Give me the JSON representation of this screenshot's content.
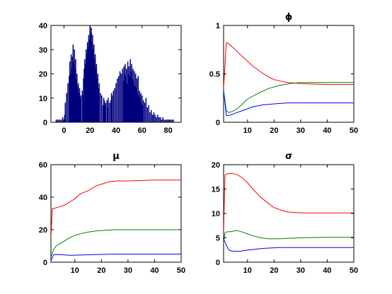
{
  "chart_data": [
    {
      "type": "bar",
      "title": "",
      "xlabel": "",
      "ylabel": "",
      "xlim": [
        -10,
        90
      ],
      "ylim": [
        0,
        40
      ],
      "xticks": [
        0,
        20,
        40,
        60,
        80
      ],
      "yticks": [
        0,
        10,
        20,
        30,
        40
      ],
      "color": "#00007f",
      "bin_width": 0.5,
      "bins": [
        [
          -6,
          1
        ],
        [
          -5,
          1
        ],
        [
          -4,
          1
        ],
        [
          -3,
          1
        ],
        [
          -2,
          1
        ],
        [
          -1,
          2
        ],
        [
          0,
          1
        ],
        [
          0.5,
          3
        ],
        [
          1,
          8
        ],
        [
          2,
          12
        ],
        [
          3,
          16
        ],
        [
          4,
          19
        ],
        [
          4.5,
          25
        ],
        [
          5,
          20
        ],
        [
          5.5,
          28
        ],
        [
          6,
          22
        ],
        [
          6.5,
          27
        ],
        [
          7,
          32
        ],
        [
          7.5,
          25
        ],
        [
          8,
          30
        ],
        [
          8.5,
          22
        ],
        [
          9,
          26
        ],
        [
          9.5,
          18
        ],
        [
          10,
          20
        ],
        [
          10.5,
          15
        ],
        [
          11,
          16
        ],
        [
          11.5,
          12
        ],
        [
          12,
          14
        ],
        [
          12.5,
          10
        ],
        [
          13,
          11
        ],
        [
          14,
          13
        ],
        [
          14.5,
          11
        ],
        [
          15,
          18
        ],
        [
          15.5,
          22
        ],
        [
          16,
          26
        ],
        [
          16.5,
          24
        ],
        [
          17,
          30
        ],
        [
          17.5,
          28
        ],
        [
          18,
          33
        ],
        [
          18.5,
          31
        ],
        [
          19,
          36
        ],
        [
          19.5,
          34
        ],
        [
          20,
          40
        ],
        [
          20.5,
          37
        ],
        [
          21,
          39
        ],
        [
          21.5,
          33
        ],
        [
          22,
          36
        ],
        [
          22.5,
          30
        ],
        [
          23,
          32
        ],
        [
          23.5,
          26
        ],
        [
          24,
          28
        ],
        [
          24.5,
          22
        ],
        [
          25,
          24
        ],
        [
          25.5,
          18
        ],
        [
          26,
          20
        ],
        [
          26.5,
          14
        ],
        [
          27,
          16
        ],
        [
          28,
          12
        ],
        [
          29,
          11
        ],
        [
          30,
          7
        ],
        [
          30.5,
          10
        ],
        [
          31,
          9
        ],
        [
          31.5,
          7
        ],
        [
          32,
          8
        ],
        [
          33,
          9
        ],
        [
          33.5,
          6
        ],
        [
          34,
          10
        ],
        [
          35,
          8
        ],
        [
          36,
          9
        ],
        [
          36.5,
          12
        ],
        [
          37,
          11
        ],
        [
          38,
          13
        ],
        [
          39,
          14
        ],
        [
          40,
          16
        ],
        [
          41,
          18
        ],
        [
          42,
          19
        ],
        [
          43,
          21
        ],
        [
          44,
          20
        ],
        [
          45,
          22
        ],
        [
          45.5,
          17
        ],
        [
          46,
          23
        ],
        [
          46.5,
          20
        ],
        [
          47,
          24
        ],
        [
          47.5,
          19
        ],
        [
          48,
          22
        ],
        [
          48.5,
          16
        ],
        [
          49,
          25
        ],
        [
          49.5,
          20
        ],
        [
          50,
          23
        ],
        [
          50.5,
          19
        ],
        [
          51,
          26
        ],
        [
          51.5,
          21
        ],
        [
          52,
          24
        ],
        [
          52.5,
          18
        ],
        [
          53,
          22
        ],
        [
          53.5,
          17
        ],
        [
          54,
          21
        ],
        [
          54.5,
          15
        ],
        [
          55,
          20
        ],
        [
          55.5,
          14
        ],
        [
          56,
          18
        ],
        [
          56.5,
          12
        ],
        [
          57,
          19
        ],
        [
          57.5,
          11
        ],
        [
          58,
          13
        ],
        [
          58.5,
          10
        ],
        [
          59,
          12
        ],
        [
          59.5,
          8
        ],
        [
          60,
          11
        ],
        [
          60.5,
          7
        ],
        [
          61,
          9
        ],
        [
          62,
          8
        ],
        [
          63,
          10
        ],
        [
          64,
          6
        ],
        [
          65,
          7
        ],
        [
          66,
          4
        ],
        [
          67,
          5
        ],
        [
          68,
          3
        ],
        [
          69,
          4
        ],
        [
          70,
          3
        ],
        [
          71,
          2
        ],
        [
          72,
          3
        ],
        [
          73,
          2
        ],
        [
          74,
          2
        ],
        [
          75,
          1
        ],
        [
          76,
          2
        ],
        [
          77,
          1
        ],
        [
          78,
          1
        ],
        [
          79,
          1
        ],
        [
          80,
          1
        ],
        [
          81,
          1
        ],
        [
          82,
          1
        ],
        [
          83,
          1
        ],
        [
          84,
          1
        ]
      ]
    },
    {
      "type": "line",
      "title": "ϕ",
      "xlabel": "",
      "ylabel": "",
      "xlim": [
        1,
        50
      ],
      "ylim": [
        0,
        1
      ],
      "xticks": [
        10,
        20,
        30,
        40,
        50
      ],
      "yticks": [
        0,
        0.5,
        1
      ],
      "series": [
        {
          "color": "#ff0000",
          "x": [
            1,
            2,
            3,
            5,
            8,
            12,
            16,
            20,
            25,
            30,
            40,
            50
          ],
          "y": [
            0.35,
            0.82,
            0.81,
            0.76,
            0.68,
            0.58,
            0.5,
            0.44,
            0.41,
            0.4,
            0.39,
            0.39
          ]
        },
        {
          "color": "#008000",
          "x": [
            1,
            2,
            3,
            5,
            7,
            10,
            14,
            18,
            22,
            26,
            30,
            40,
            50
          ],
          "y": [
            0.32,
            0.12,
            0.1,
            0.12,
            0.16,
            0.24,
            0.3,
            0.35,
            0.38,
            0.4,
            0.41,
            0.41,
            0.41
          ]
        },
        {
          "color": "#0000ff",
          "x": [
            1,
            2,
            3,
            5,
            8,
            12,
            16,
            20,
            25,
            30,
            40,
            50
          ],
          "y": [
            0.33,
            0.07,
            0.07,
            0.09,
            0.12,
            0.16,
            0.18,
            0.19,
            0.2,
            0.2,
            0.2,
            0.2
          ]
        }
      ]
    },
    {
      "type": "line",
      "title": "μ",
      "xlabel": "",
      "ylabel": "",
      "xlim": [
        1,
        50
      ],
      "ylim": [
        0,
        60
      ],
      "xticks": [
        10,
        20,
        30,
        40,
        50
      ],
      "yticks": [
        0,
        20,
        40,
        60
      ],
      "series": [
        {
          "color": "#ff0000",
          "x": [
            1,
            1.5,
            2,
            4,
            6,
            8,
            10,
            12,
            15,
            18,
            20,
            23,
            26,
            30,
            40,
            50
          ],
          "y": [
            15,
            33,
            33,
            34,
            35,
            37,
            39,
            42,
            44,
            47,
            48,
            49.5,
            50,
            50,
            50.5,
            50.5
          ]
        },
        {
          "color": "#008000",
          "x": [
            1,
            2,
            3,
            5,
            8,
            10,
            12,
            15,
            18,
            22,
            25,
            30,
            40,
            50
          ],
          "y": [
            3,
            8,
            10,
            12,
            15,
            16.5,
            17.5,
            18.5,
            19.2,
            19.7,
            20,
            20,
            20,
            20
          ]
        },
        {
          "color": "#0000ff",
          "x": [
            1,
            2,
            3,
            5,
            8,
            12,
            16,
            20,
            25,
            30,
            40,
            50
          ],
          "y": [
            1,
            4.5,
            4.8,
            4.6,
            4.2,
            4.4,
            4.6,
            4.8,
            5,
            5,
            5,
            5
          ]
        }
      ]
    },
    {
      "type": "line",
      "title": "σ",
      "xlabel": "",
      "ylabel": "",
      "xlim": [
        1,
        50
      ],
      "ylim": [
        0,
        20
      ],
      "xticks": [
        10,
        20,
        30,
        40,
        50
      ],
      "yticks": [
        0,
        5,
        10,
        15,
        20
      ],
      "series": [
        {
          "color": "#ff0000",
          "x": [
            1,
            1.5,
            2,
            4,
            6,
            8,
            10,
            12,
            15,
            18,
            20,
            22,
            25,
            30,
            40,
            50
          ],
          "y": [
            6,
            17.8,
            18.1,
            18.2,
            18,
            17.3,
            16.3,
            15.0,
            13.3,
            12.0,
            11.2,
            10.8,
            10.3,
            10.1,
            10.1,
            10.1
          ]
        },
        {
          "color": "#008000",
          "x": [
            1,
            1.5,
            2,
            4,
            6,
            8,
            10,
            12,
            15,
            18,
            22,
            25,
            30,
            40,
            50
          ],
          "y": [
            4,
            6,
            6.2,
            6.3,
            6.5,
            6.2,
            5.8,
            5.4,
            5.0,
            4.8,
            4.8,
            4.9,
            5.0,
            5.1,
            5.1
          ]
        },
        {
          "color": "#0000ff",
          "x": [
            1,
            2,
            3,
            4,
            6,
            8,
            10,
            12,
            15,
            18,
            22,
            25,
            30,
            40,
            50
          ],
          "y": [
            4.8,
            3.5,
            2.5,
            2.3,
            2.2,
            2.3,
            2.5,
            2.6,
            2.8,
            2.9,
            3.0,
            3.0,
            3.0,
            3.0,
            3.0
          ]
        }
      ]
    }
  ]
}
